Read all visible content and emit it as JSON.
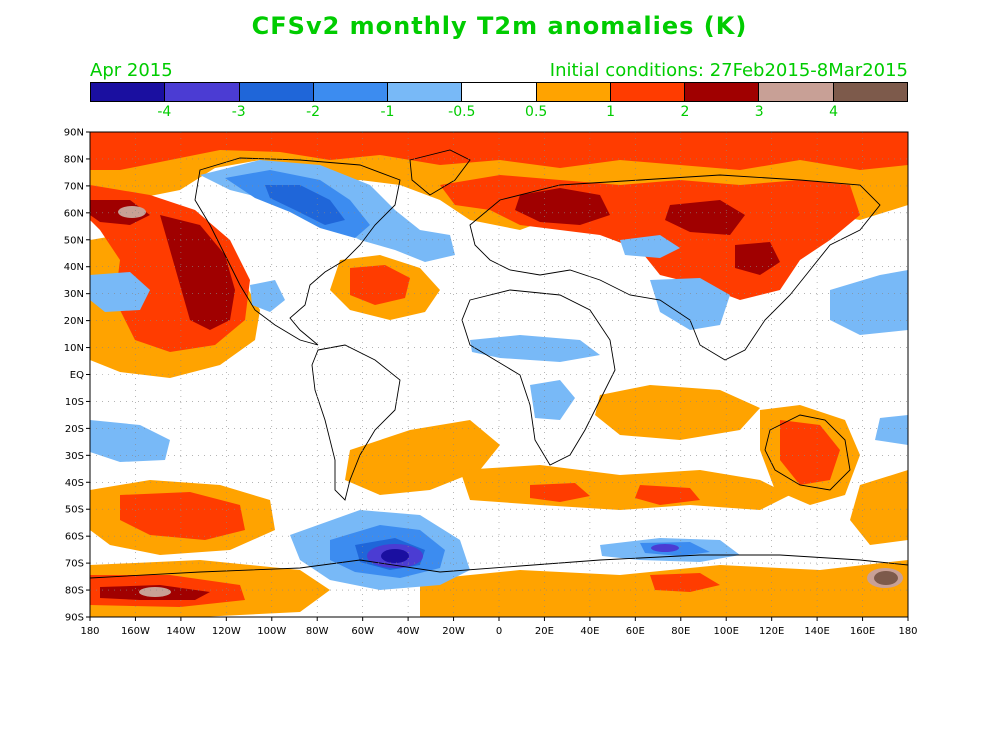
{
  "title": "CFSv2 monthly T2m anomalies (K)",
  "month": "Apr 2015",
  "initial_conditions": "Initial conditions: 27Feb2015-8Mar2015",
  "colorbar": {
    "colors": [
      "#1a0fa0",
      "#4b3cd3",
      "#1f66d9",
      "#3c8cf0",
      "#78b9f7",
      "#ffffff",
      "#ffa300",
      "#ff3c00",
      "#a00000",
      "#c8a096",
      "#7d5a4b"
    ],
    "labels": [
      "-4",
      "-3",
      "-2",
      "-1",
      "-0.5",
      "0.5",
      "1",
      "2",
      "3",
      "4"
    ]
  },
  "axes": {
    "lat_labels": [
      "90N",
      "80N",
      "70N",
      "60N",
      "50N",
      "40N",
      "30N",
      "20N",
      "10N",
      "EQ",
      "10S",
      "20S",
      "30S",
      "40S",
      "50S",
      "60S",
      "70S",
      "80S",
      "90S"
    ],
    "lon_labels": [
      "180",
      "160W",
      "140W",
      "120W",
      "100W",
      "80W",
      "60W",
      "40W",
      "20W",
      "0",
      "20E",
      "40E",
      "60E",
      "80E",
      "100E",
      "120E",
      "140E",
      "160E",
      "180"
    ]
  }
}
